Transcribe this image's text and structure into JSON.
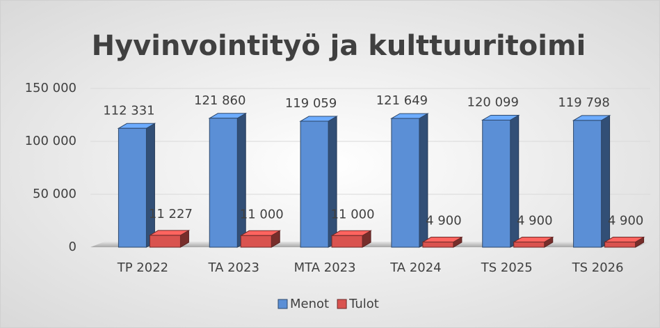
{
  "chart_data": {
    "type": "bar3d",
    "title": "Hyvinvointityö ja kulttuuritoimi",
    "categories": [
      "TP 2022",
      "TA 2023",
      "MTA 2023",
      "TA 2024",
      "TS 2025",
      "TS 2026"
    ],
    "series": [
      {
        "name": "Menot",
        "color": "#5b8fd6",
        "values": [
          112331,
          121860,
          119059,
          121649,
          120099,
          119798
        ],
        "value_labels": [
          "112 331",
          "121 860",
          "119 059",
          "121 649",
          "120 099",
          "119 798"
        ]
      },
      {
        "name": "Tulot",
        "color": "#d9534f",
        "values": [
          11227,
          11000,
          11000,
          4900,
          4900,
          4900
        ],
        "value_labels": [
          "11 227",
          "11 000",
          "11 000",
          "4 900",
          "4 900",
          "4 900"
        ]
      }
    ],
    "ylim": [
      0,
      150000
    ],
    "yticks": [
      0,
      {
        "value": 50000,
        "label": "50 000"
      },
      {
        "value": 100000,
        "label": "100 000"
      },
      {
        "value": 150000,
        "label": "150 000"
      }
    ],
    "grid": true,
    "legend": "bottom"
  }
}
